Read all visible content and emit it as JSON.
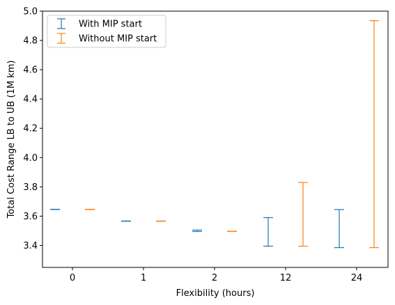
{
  "chart_data": {
    "type": "errorbar",
    "title": "",
    "xlabel": "Flexibility (hours)",
    "ylabel": "Total Cost Range LB to UB (1M km)",
    "categories": [
      "0",
      "1",
      "2",
      "12",
      "24"
    ],
    "ylim": [
      3.25,
      5.0
    ],
    "yticks": [
      "3.4",
      "3.6",
      "3.8",
      "4.0",
      "4.2",
      "4.4",
      "4.6",
      "4.8",
      "5.0"
    ],
    "grid": false,
    "legend_position": "top-left",
    "series": [
      {
        "name": "With MIP start",
        "color": "#1f77b4",
        "lower": [
          3.645,
          3.565,
          3.495,
          3.395,
          3.385
        ],
        "upper": [
          3.647,
          3.567,
          3.505,
          3.59,
          3.645
        ]
      },
      {
        "name": "Without MIP start",
        "color": "#ff7f0e",
        "lower": [
          3.645,
          3.565,
          3.495,
          3.395,
          3.385
        ],
        "upper": [
          3.647,
          3.567,
          3.497,
          3.83,
          4.935
        ]
      }
    ]
  }
}
